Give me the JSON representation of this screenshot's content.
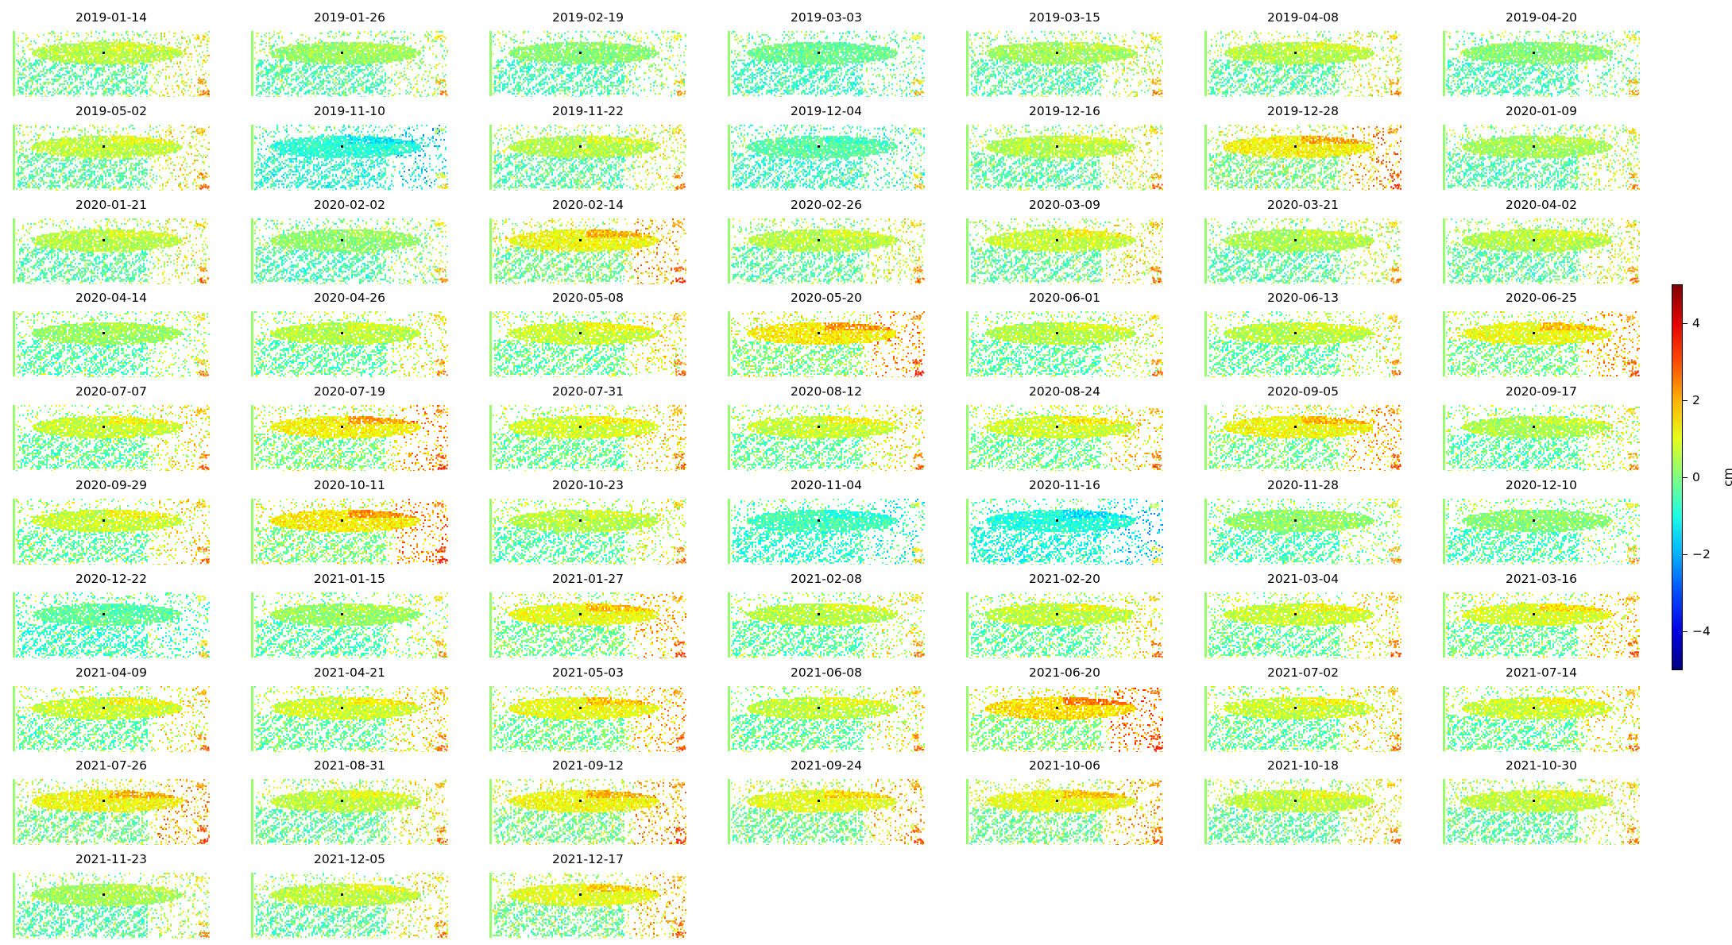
{
  "chart_data": {
    "type": "heatmap",
    "panels": [
      {
        "title": "2019-01-14",
        "mean_cm": 0.6
      },
      {
        "title": "2019-01-26",
        "mean_cm": 0.3
      },
      {
        "title": "2019-02-19",
        "mean_cm": 0.1
      },
      {
        "title": "2019-03-03",
        "mean_cm": -0.2
      },
      {
        "title": "2019-03-15",
        "mean_cm": 0.4
      },
      {
        "title": "2019-04-08",
        "mean_cm": 0.6
      },
      {
        "title": "2019-04-20",
        "mean_cm": 0.1
      },
      {
        "title": "2019-05-02",
        "mean_cm": 0.7
      },
      {
        "title": "2019-11-10",
        "mean_cm": -0.9
      },
      {
        "title": "2019-11-22",
        "mean_cm": 0.6
      },
      {
        "title": "2019-12-04",
        "mean_cm": -0.4
      },
      {
        "title": "2019-12-16",
        "mean_cm": 0.6
      },
      {
        "title": "2019-12-28",
        "mean_cm": 1.4
      },
      {
        "title": "2020-01-09",
        "mean_cm": 0.4
      },
      {
        "title": "2020-01-21",
        "mean_cm": 0.6
      },
      {
        "title": "2020-02-02",
        "mean_cm": 0.2
      },
      {
        "title": "2020-02-14",
        "mean_cm": 1.3
      },
      {
        "title": "2020-02-26",
        "mean_cm": 0.6
      },
      {
        "title": "2020-03-09",
        "mean_cm": 0.8
      },
      {
        "title": "2020-03-21",
        "mean_cm": 0.5
      },
      {
        "title": "2020-04-02",
        "mean_cm": 0.6
      },
      {
        "title": "2020-04-14",
        "mean_cm": 0.3
      },
      {
        "title": "2020-04-26",
        "mean_cm": 0.6
      },
      {
        "title": "2020-05-08",
        "mean_cm": 0.8
      },
      {
        "title": "2020-05-20",
        "mean_cm": 1.5
      },
      {
        "title": "2020-06-01",
        "mean_cm": 0.6
      },
      {
        "title": "2020-06-13",
        "mean_cm": 0.6
      },
      {
        "title": "2020-06-25",
        "mean_cm": 1.2
      },
      {
        "title": "2020-07-07",
        "mean_cm": 0.8
      },
      {
        "title": "2020-07-19",
        "mean_cm": 1.4
      },
      {
        "title": "2020-07-31",
        "mean_cm": 0.9
      },
      {
        "title": "2020-08-12",
        "mean_cm": 0.8
      },
      {
        "title": "2020-08-24",
        "mean_cm": 0.9
      },
      {
        "title": "2020-09-05",
        "mean_cm": 1.3
      },
      {
        "title": "2020-09-17",
        "mean_cm": 0.5
      },
      {
        "title": "2020-09-29",
        "mean_cm": 0.8
      },
      {
        "title": "2020-10-11",
        "mean_cm": 1.5
      },
      {
        "title": "2020-10-23",
        "mean_cm": 0.6
      },
      {
        "title": "2020-11-04",
        "mean_cm": -0.6
      },
      {
        "title": "2020-11-16",
        "mean_cm": -1.0
      },
      {
        "title": "2020-11-28",
        "mean_cm": 0.2
      },
      {
        "title": "2020-12-10",
        "mean_cm": 0.1
      },
      {
        "title": "2020-12-22",
        "mean_cm": -0.3
      },
      {
        "title": "2021-01-15",
        "mean_cm": 0.3
      },
      {
        "title": "2021-01-27",
        "mean_cm": 1.2
      },
      {
        "title": "2021-02-08",
        "mean_cm": 0.6
      },
      {
        "title": "2021-02-20",
        "mean_cm": 0.7
      },
      {
        "title": "2021-03-04",
        "mean_cm": 0.8
      },
      {
        "title": "2021-03-16",
        "mean_cm": 1.0
      },
      {
        "title": "2021-04-09",
        "mean_cm": 0.8
      },
      {
        "title": "2021-04-21",
        "mean_cm": 0.9
      },
      {
        "title": "2021-05-03",
        "mean_cm": 1.2
      },
      {
        "title": "2021-06-08",
        "mean_cm": 0.7
      },
      {
        "title": "2021-06-20",
        "mean_cm": 1.7
      },
      {
        "title": "2021-07-02",
        "mean_cm": 0.8
      },
      {
        "title": "2021-07-14",
        "mean_cm": 0.8
      },
      {
        "title": "2021-07-26",
        "mean_cm": 1.3
      },
      {
        "title": "2021-08-31",
        "mean_cm": 0.7
      },
      {
        "title": "2021-09-12",
        "mean_cm": 1.3
      },
      {
        "title": "2021-09-24",
        "mean_cm": 1.1
      },
      {
        "title": "2021-10-06",
        "mean_cm": 1.2
      },
      {
        "title": "2021-10-18",
        "mean_cm": 0.7
      },
      {
        "title": "2021-10-30",
        "mean_cm": 0.7
      },
      {
        "title": "2021-11-23",
        "mean_cm": 0.4
      },
      {
        "title": "2021-12-05",
        "mean_cm": 0.7
      },
      {
        "title": "2021-12-17",
        "mean_cm": 1.1
      }
    ],
    "columns": 7,
    "colormap": "jet",
    "colorbar": {
      "label": "cm",
      "range": [
        -5,
        5
      ],
      "ticks": [
        4,
        2,
        0,
        -2,
        -4
      ],
      "tick_labels": [
        "4",
        "2",
        "0",
        "−2",
        "−4"
      ]
    },
    "axes_visible": false
  }
}
